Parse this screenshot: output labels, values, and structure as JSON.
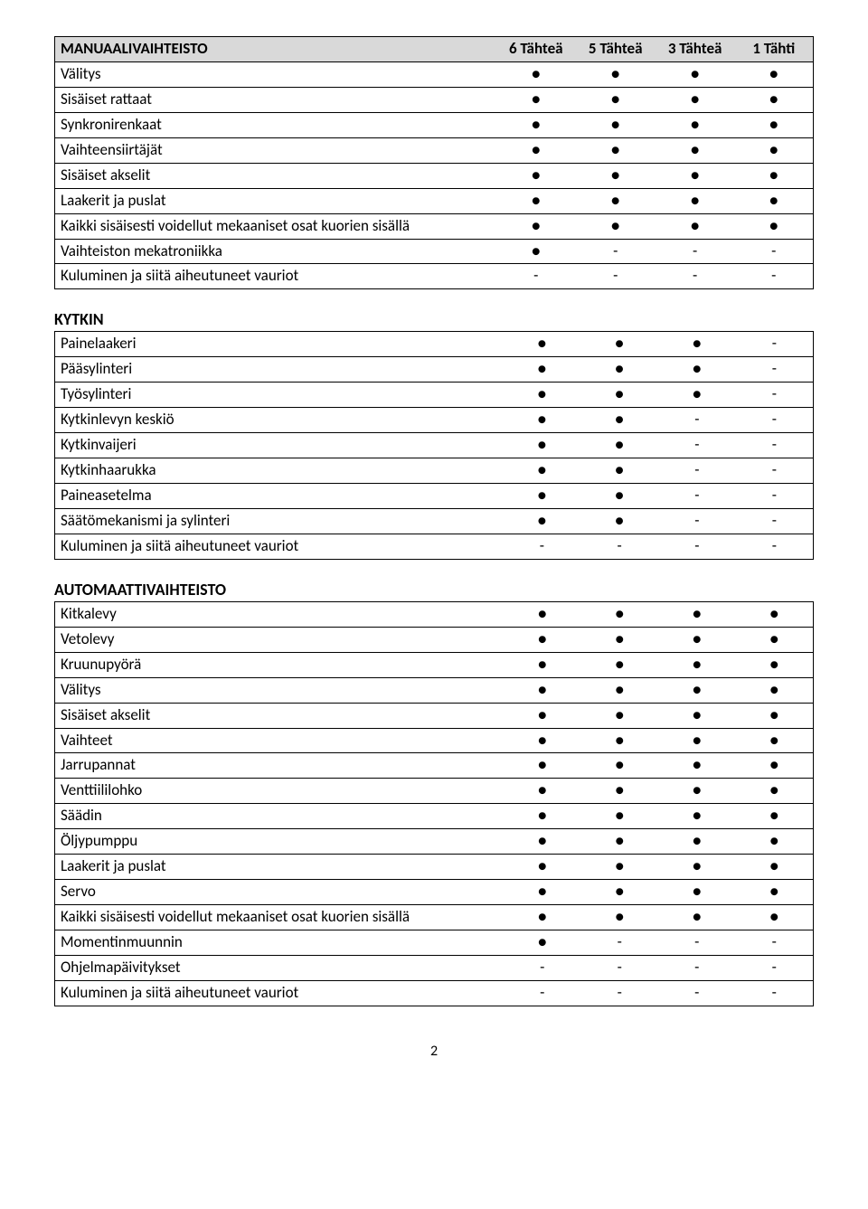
{
  "colors": {
    "header_bg": "#d9d9d9",
    "border": "#000000",
    "text": "#000000",
    "page_bg": "#ffffff"
  },
  "dot": "●",
  "dash": "-",
  "page_number": "2",
  "columns": [
    "6 Tähteä",
    "5 Tähteä",
    "3 Tähteä",
    "1 Tähti"
  ],
  "sections": [
    {
      "title": "MANUAALIVAIHTEISTO",
      "show_title_in_header": true,
      "rows": [
        {
          "label": "Välitys",
          "vals": [
            "●",
            "●",
            "●",
            "●"
          ]
        },
        {
          "label": "Sisäiset rattaat",
          "vals": [
            "●",
            "●",
            "●",
            "●"
          ]
        },
        {
          "label": "Synkronirenkaat",
          "vals": [
            "●",
            "●",
            "●",
            "●"
          ]
        },
        {
          "label": "Vaihteensiirtäjät",
          "vals": [
            "●",
            "●",
            "●",
            "●"
          ]
        },
        {
          "label": "Sisäiset akselit",
          "vals": [
            "●",
            "●",
            "●",
            "●"
          ]
        },
        {
          "label": "Laakerit ja puslat",
          "vals": [
            "●",
            "●",
            "●",
            "●"
          ]
        },
        {
          "label": "Kaikki sisäisesti voidellut mekaaniset osat kuorien sisällä",
          "vals": [
            "●",
            "●",
            "●",
            "●"
          ]
        },
        {
          "label": "Vaihteiston mekatroniikka",
          "vals": [
            "●",
            "-",
            "-",
            "-"
          ]
        },
        {
          "label": "Kuluminen ja siitä aiheutuneet vauriot",
          "vals": [
            "-",
            "-",
            "-",
            "-"
          ]
        }
      ]
    },
    {
      "title": "KYTKIN",
      "show_title_in_header": false,
      "rows": [
        {
          "label": "Painelaakeri",
          "vals": [
            "●",
            "●",
            "●",
            "-"
          ]
        },
        {
          "label": "Pääsylinteri",
          "vals": [
            "●",
            "●",
            "●",
            "-"
          ]
        },
        {
          "label": "Työsylinteri",
          "vals": [
            "●",
            "●",
            "●",
            "-"
          ]
        },
        {
          "label": "Kytkinlevyn keskiö",
          "vals": [
            "●",
            "●",
            "-",
            "-"
          ]
        },
        {
          "label": "Kytkinvaijeri",
          "vals": [
            "●",
            "●",
            "-",
            "-"
          ]
        },
        {
          "label": "Kytkinhaarukka",
          "vals": [
            "●",
            "●",
            "-",
            "-"
          ]
        },
        {
          "label": "Paineasetelma",
          "vals": [
            "●",
            "●",
            "-",
            "-"
          ]
        },
        {
          "label": "Säätömekanismi ja sylinteri",
          "vals": [
            "●",
            "●",
            "-",
            "-"
          ]
        },
        {
          "label": "Kuluminen ja siitä aiheutuneet vauriot",
          "vals": [
            "-",
            "-",
            "-",
            "-"
          ]
        }
      ]
    },
    {
      "title": "AUTOMAATTIVAIHTEISTO",
      "show_title_in_header": false,
      "rows": [
        {
          "label": "Kitkalevy",
          "vals": [
            "●",
            "●",
            "●",
            "●"
          ]
        },
        {
          "label": "Vetolevy",
          "vals": [
            "●",
            "●",
            "●",
            "●"
          ]
        },
        {
          "label": "Kruunupyörä",
          "vals": [
            "●",
            "●",
            "●",
            "●"
          ]
        },
        {
          "label": "Välitys",
          "vals": [
            "●",
            "●",
            "●",
            "●"
          ]
        },
        {
          "label": "Sisäiset akselit",
          "vals": [
            "●",
            "●",
            "●",
            "●"
          ]
        },
        {
          "label": "Vaihteet",
          "vals": [
            "●",
            "●",
            "●",
            "●"
          ]
        },
        {
          "label": "Jarrupannat",
          "vals": [
            "●",
            "●",
            "●",
            "●"
          ]
        },
        {
          "label": "Venttiililohko",
          "vals": [
            "●",
            "●",
            "●",
            "●"
          ]
        },
        {
          "label": "Säädin",
          "vals": [
            "●",
            "●",
            "●",
            "●"
          ]
        },
        {
          "label": "Öljypumppu",
          "vals": [
            "●",
            "●",
            "●",
            "●"
          ]
        },
        {
          "label": "Laakerit ja puslat",
          "vals": [
            "●",
            "●",
            "●",
            "●"
          ]
        },
        {
          "label": "Servo",
          "vals": [
            "●",
            "●",
            "●",
            "●"
          ]
        },
        {
          "label": "Kaikki sisäisesti voidellut mekaaniset osat kuorien sisällä",
          "vals": [
            "●",
            "●",
            "●",
            "●"
          ]
        },
        {
          "label": "Momentinmuunnin",
          "vals": [
            "●",
            "-",
            "-",
            "-"
          ]
        },
        {
          "label": "Ohjelmapäivitykset",
          "vals": [
            "-",
            "-",
            "-",
            "-"
          ]
        },
        {
          "label": "Kuluminen ja siitä aiheutuneet vauriot",
          "vals": [
            "-",
            "-",
            "-",
            "-"
          ]
        }
      ]
    }
  ]
}
